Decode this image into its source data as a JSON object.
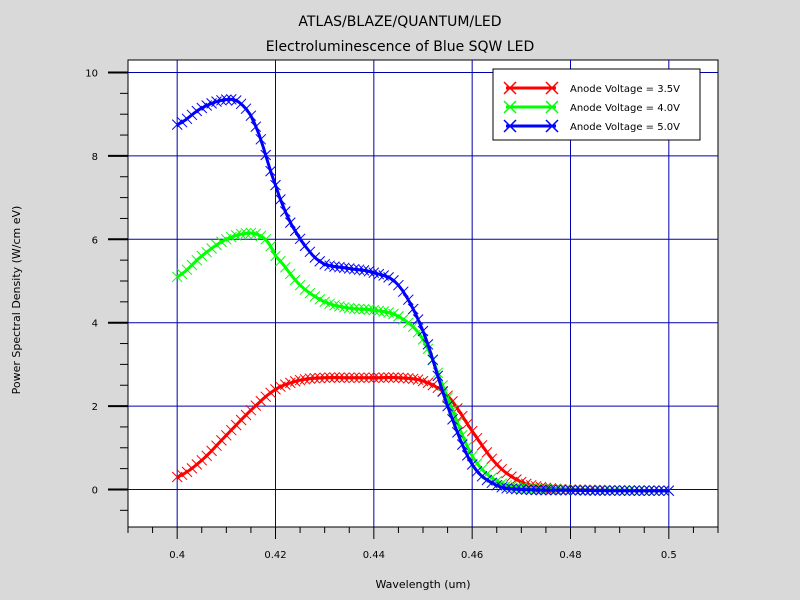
{
  "chart_data": {
    "type": "line",
    "title": "ATLAS/BLAZE/QUANTUM/LED",
    "subtitle": "Electroluminescence of Blue SQW LED",
    "xlabel": "Wavelength (um)",
    "ylabel": "Power Spectral Density (W/cm eV)",
    "xlim": [
      0.39,
      0.51
    ],
    "ylim": [
      -0.9,
      10.3
    ],
    "x_ticks": [
      0.4,
      0.42,
      0.44,
      0.46,
      0.48,
      0.5
    ],
    "x_tick_labels": [
      "0.4",
      "0.42",
      "0.44",
      "0.46",
      "0.48",
      "0.5"
    ],
    "y_ticks": [
      0,
      2,
      4,
      6,
      8,
      10
    ],
    "y_tick_labels": [
      "0",
      "2",
      "4",
      "6",
      "8",
      "10"
    ],
    "grid": true,
    "legend_position": "top-right",
    "marker": "x",
    "series": [
      {
        "name": "Anode Voltage = 3.5V",
        "color": "#ff0000",
        "x": [
          0.4,
          0.405,
          0.41,
          0.415,
          0.42,
          0.425,
          0.43,
          0.435,
          0.44,
          0.445,
          0.45,
          0.455,
          0.46,
          0.465,
          0.47,
          0.475,
          0.48,
          0.49,
          0.5
        ],
        "y": [
          0.3,
          0.7,
          1.3,
          1.9,
          2.4,
          2.62,
          2.68,
          2.68,
          2.68,
          2.68,
          2.6,
          2.25,
          1.4,
          0.6,
          0.18,
          0.04,
          0.0,
          -0.02,
          -0.03
        ]
      },
      {
        "name": "Anode Voltage = 4.0V",
        "color": "#00ff00",
        "x": [
          0.4,
          0.405,
          0.41,
          0.415,
          0.418,
          0.42,
          0.425,
          0.43,
          0.435,
          0.44,
          0.445,
          0.45,
          0.455,
          0.46,
          0.465,
          0.47,
          0.48,
          0.49,
          0.5
        ],
        "y": [
          5.1,
          5.6,
          6.0,
          6.15,
          6.0,
          5.6,
          4.9,
          4.5,
          4.35,
          4.3,
          4.15,
          3.6,
          2.2,
          0.8,
          0.2,
          0.04,
          -0.01,
          -0.02,
          -0.03
        ]
      },
      {
        "name": "Anode Voltage = 5.0V",
        "color": "#0000ff",
        "x": [
          0.4,
          0.405,
          0.41,
          0.413,
          0.416,
          0.42,
          0.423,
          0.427,
          0.43,
          0.435,
          0.44,
          0.445,
          0.45,
          0.455,
          0.46,
          0.465,
          0.47,
          0.48,
          0.49,
          0.5
        ],
        "y": [
          8.75,
          9.15,
          9.35,
          9.25,
          8.7,
          7.3,
          6.4,
          5.7,
          5.4,
          5.3,
          5.2,
          4.9,
          3.8,
          2.0,
          0.6,
          0.1,
          0.0,
          -0.02,
          -0.03,
          -0.03
        ]
      }
    ]
  }
}
